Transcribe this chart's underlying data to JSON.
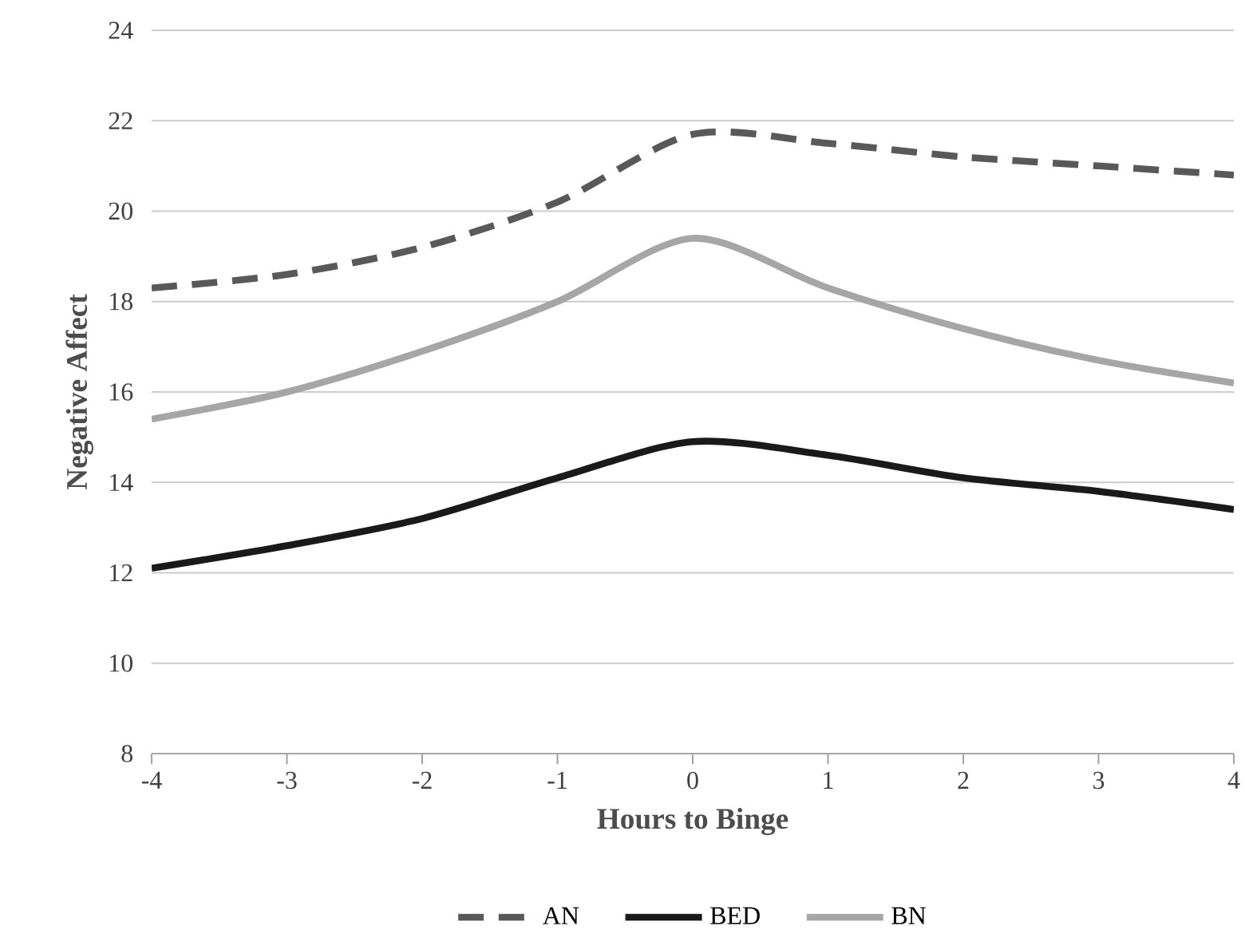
{
  "chart_data": {
    "type": "line",
    "xlabel": "Hours to Binge",
    "ylabel": "Negative Affect",
    "x": [
      -4,
      -3,
      -2,
      -1,
      0,
      1,
      2,
      3,
      4
    ],
    "xlim": [
      -4,
      4
    ],
    "xticks": [
      -4,
      -3,
      -2,
      -1,
      0,
      1,
      2,
      3,
      4
    ],
    "ylim": [
      8,
      24
    ],
    "yticks": [
      8,
      10,
      12,
      14,
      16,
      18,
      20,
      22,
      24
    ],
    "grid": "y",
    "legend": "bottom",
    "marker": "none",
    "series": [
      {
        "name": "AN",
        "color": "#595959",
        "line_style": "dashed",
        "values": [
          18.3,
          18.6,
          19.2,
          20.2,
          21.7,
          21.5,
          21.2,
          21.0,
          20.8
        ]
      },
      {
        "name": "BED",
        "color": "#1a1a1a",
        "line_style": "solid",
        "values": [
          12.1,
          12.6,
          13.2,
          14.1,
          14.9,
          14.6,
          14.1,
          13.8,
          13.4
        ]
      },
      {
        "name": "BN",
        "color": "#a6a6a6",
        "line_style": "solid",
        "values": [
          15.4,
          16.0,
          16.9,
          18.0,
          19.4,
          18.3,
          17.4,
          16.7,
          16.2
        ]
      }
    ]
  }
}
